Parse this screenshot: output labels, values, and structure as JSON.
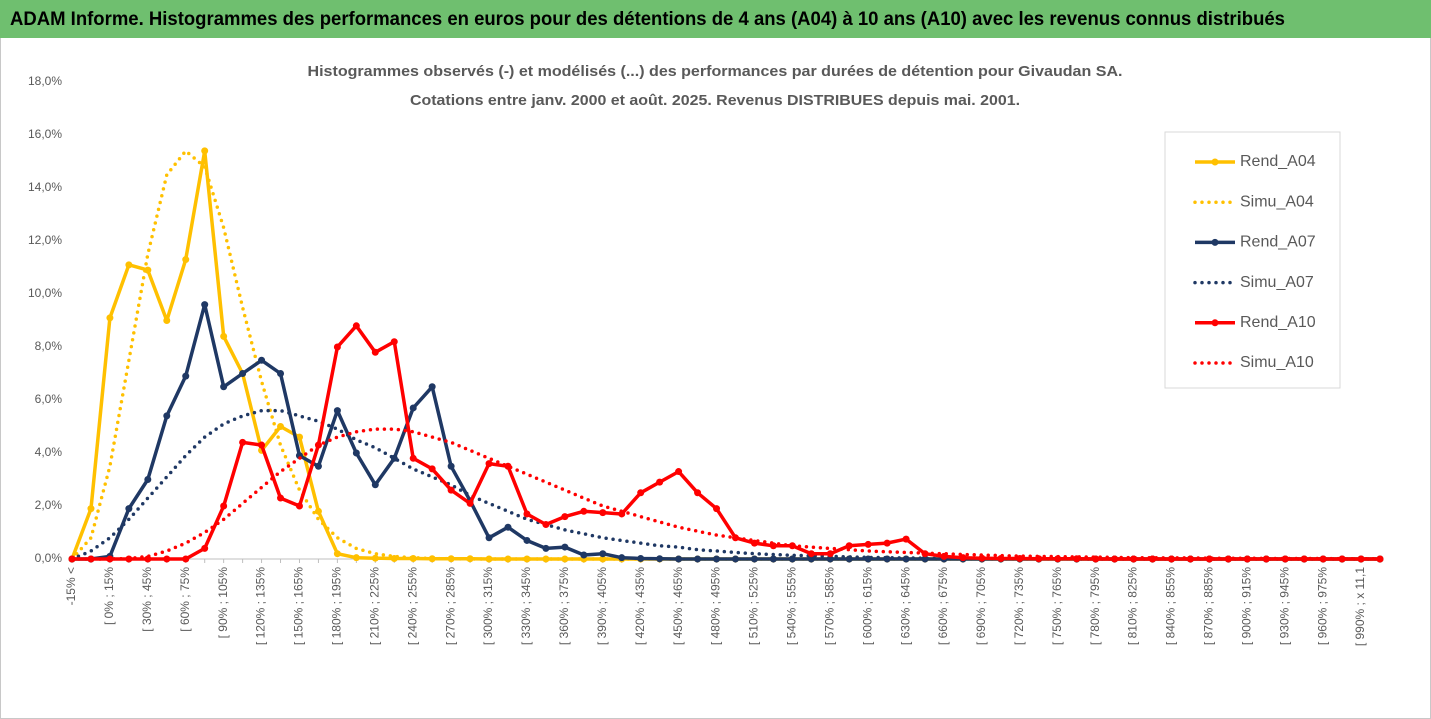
{
  "header": "ADAM Informe. Histogrammes des performances en euros pour des détentions de 4 ans (A04) à 10 ans (A10) avec les revenus connus distribués",
  "chart_data": {
    "type": "line",
    "title": [
      "Histogrammes observés (-) et modélisés (...) des performances par durées de détention pour Givaudan SA.",
      "Cotations entre janv. 2000 et août. 2025. Revenus DISTRIBUES depuis mai. 2001."
    ],
    "categories": [
      "-15% <",
      null,
      "[ 0% ; 15%",
      null,
      "[ 30% ; 45%",
      null,
      "[ 60% ; 75%",
      null,
      "[ 90% ; 105%",
      null,
      "[ 120% ; 135%",
      null,
      "[ 150% ; 165%",
      null,
      "[ 180% ; 195%",
      null,
      "[ 210% ; 225%",
      null,
      "[ 240% ; 255%",
      null,
      "[ 270% ; 285%",
      null,
      "[ 300% ; 315%",
      null,
      "[ 330% ; 345%",
      null,
      "[ 360% ; 375%",
      null,
      "[ 390% ; 405%",
      null,
      "[ 420% ; 435%",
      null,
      "[ 450% ; 465%",
      null,
      "[ 480% ; 495%",
      null,
      "[ 510% ; 525%",
      null,
      "[ 540% ; 555%",
      null,
      "[ 570% ; 585%",
      null,
      "[ 600% ; 615%",
      null,
      "[ 630% ; 645%",
      null,
      "[ 660% ; 675%",
      null,
      "[ 690% ; 705%",
      null,
      "[ 720% ; 735%",
      null,
      "[ 750% ; 765%",
      null,
      "[ 780% ; 795%",
      null,
      "[ 810% ; 825%",
      null,
      "[ 840% ; 855%",
      null,
      "[ 870% ; 885%",
      null,
      "[ 900% ; 915%",
      null,
      "[ 930% ; 945%",
      null,
      "[ 960% ; 975%",
      null,
      "[ 990% ; x 11,1",
      null
    ],
    "series": [
      {
        "name": "Rend_A04",
        "color": "#ffc000",
        "style": "solid",
        "markers": true,
        "values": [
          0,
          1.9,
          9.1,
          11.1,
          10.9,
          9.0,
          11.3,
          15.4,
          8.4,
          7.0,
          4.1,
          5.0,
          4.6,
          1.8,
          0.2,
          0.05,
          0.03,
          0.02,
          0.02,
          0.01,
          0.01,
          0.01,
          0,
          0,
          0,
          0,
          0,
          0,
          0,
          0,
          0,
          0,
          0,
          0,
          0,
          0,
          0,
          0,
          0,
          0,
          0,
          0,
          0,
          0,
          0,
          0,
          0,
          0,
          0,
          0,
          0,
          0,
          0,
          0,
          0,
          0,
          0,
          0,
          0,
          0,
          0,
          0,
          0,
          0,
          0,
          0,
          0,
          0,
          0,
          0
        ]
      },
      {
        "name": "Simu_A04",
        "color": "#ffc000",
        "style": "dotted",
        "markers": false,
        "values": [
          0,
          0.8,
          3.5,
          7.5,
          11.5,
          14.5,
          15.4,
          14.8,
          12.5,
          9.5,
          6.7,
          4.3,
          2.6,
          1.5,
          0.8,
          0.4,
          0.2,
          0.1,
          0.05,
          0.02,
          0.01,
          0,
          0,
          0,
          0,
          0,
          0,
          0,
          0,
          0,
          0,
          0,
          0,
          0,
          0,
          0,
          0,
          0,
          0,
          0,
          0,
          0,
          0,
          0,
          0,
          0,
          0,
          0,
          0,
          0,
          0,
          0,
          0,
          0,
          0,
          0,
          0,
          0,
          0,
          0,
          0,
          0,
          0,
          0,
          0,
          0,
          0,
          0,
          0,
          0
        ]
      },
      {
        "name": "Rend_A07",
        "color": "#1f3864",
        "style": "solid",
        "markers": true,
        "values": [
          0,
          0,
          0.1,
          1.9,
          3.0,
          5.4,
          6.9,
          9.6,
          6.5,
          7.0,
          7.5,
          7.0,
          3.9,
          3.5,
          5.6,
          4.0,
          2.8,
          3.8,
          5.7,
          6.5,
          3.5,
          2.2,
          0.8,
          1.2,
          0.7,
          0.4,
          0.45,
          0.15,
          0.2,
          0.05,
          0.02,
          0.01,
          0,
          0,
          0,
          0,
          0,
          0,
          0,
          0,
          0,
          0,
          0,
          0,
          0,
          0,
          0,
          0,
          0,
          0,
          0,
          0,
          0,
          0,
          0,
          0,
          0,
          0,
          0,
          0,
          0,
          0,
          0,
          0,
          0,
          0,
          0,
          0,
          0,
          0
        ]
      },
      {
        "name": "Simu_A07",
        "color": "#1f3864",
        "style": "dotted",
        "markers": false,
        "values": [
          0,
          0.3,
          0.8,
          1.5,
          2.3,
          3.1,
          3.9,
          4.6,
          5.1,
          5.4,
          5.6,
          5.6,
          5.4,
          5.2,
          4.9,
          4.5,
          4.2,
          3.8,
          3.4,
          3.1,
          2.8,
          2.4,
          2.1,
          1.8,
          1.5,
          1.3,
          1.1,
          0.95,
          0.8,
          0.7,
          0.6,
          0.5,
          0.45,
          0.35,
          0.3,
          0.25,
          0.2,
          0.17,
          0.14,
          0.12,
          0.1,
          0.08,
          0.06,
          0.05,
          0.04,
          0.03,
          0.02,
          0.02,
          0.02,
          0.01,
          0.01,
          0.01,
          0.01,
          0,
          0,
          0,
          0,
          0,
          0,
          0,
          0,
          0,
          0,
          0,
          0,
          0,
          0,
          0,
          0,
          0
        ]
      },
      {
        "name": "Rend_A10",
        "color": "#ff0000",
        "style": "solid",
        "markers": true,
        "values": [
          0,
          0,
          0,
          0,
          0,
          0,
          0,
          0.4,
          2.0,
          4.4,
          4.3,
          2.3,
          2.0,
          4.3,
          8.0,
          8.8,
          7.8,
          8.2,
          3.8,
          3.4,
          2.6,
          2.1,
          3.6,
          3.5,
          1.7,
          1.3,
          1.6,
          1.8,
          1.75,
          1.7,
          2.5,
          2.9,
          3.3,
          2.5,
          1.9,
          0.8,
          0.6,
          0.5,
          0.5,
          0.2,
          0.2,
          0.5,
          0.55,
          0.6,
          0.75,
          0.2,
          0.1,
          0.05,
          0.03,
          0.02,
          0.02,
          0.01,
          0.01,
          0.01,
          0,
          0,
          0,
          0,
          0,
          0,
          0,
          0,
          0,
          0,
          0,
          0,
          0,
          0,
          0,
          0
        ]
      },
      {
        "name": "Simu_A10",
        "color": "#ff0000",
        "style": "dotted",
        "markers": false,
        "values": [
          0,
          0,
          0,
          0.02,
          0.1,
          0.3,
          0.6,
          1.0,
          1.5,
          2.1,
          2.7,
          3.3,
          3.8,
          4.3,
          4.6,
          4.8,
          4.9,
          4.9,
          4.8,
          4.6,
          4.4,
          4.1,
          3.8,
          3.5,
          3.2,
          2.9,
          2.6,
          2.3,
          2.0,
          1.8,
          1.6,
          1.4,
          1.2,
          1.05,
          0.9,
          0.8,
          0.7,
          0.6,
          0.5,
          0.45,
          0.4,
          0.35,
          0.3,
          0.27,
          0.25,
          0.22,
          0.2,
          0.17,
          0.15,
          0.13,
          0.11,
          0.1,
          0.09,
          0.08,
          0.07,
          0.06,
          0.05,
          0.05,
          0.04,
          0.04,
          0.03,
          0.03,
          0.03,
          0.02,
          0.02,
          0.02,
          0.02,
          0.01,
          0.01,
          0.01
        ]
      }
    ],
    "ylim": [
      0,
      18
    ],
    "yticks": [
      {
        "value": 0,
        "label": "0,0%"
      },
      {
        "value": 2,
        "label": "2,0%"
      },
      {
        "value": 4,
        "label": "4,0%"
      },
      {
        "value": 6,
        "label": "6,0%"
      },
      {
        "value": 8,
        "label": "8,0%"
      },
      {
        "value": 10,
        "label": "10,0%"
      },
      {
        "value": 12,
        "label": "12,0%"
      },
      {
        "value": 14,
        "label": "14,0%"
      },
      {
        "value": 16,
        "label": "16,0%"
      },
      {
        "value": 18,
        "label": "18,0%"
      }
    ],
    "grid": false,
    "legend": "right"
  }
}
